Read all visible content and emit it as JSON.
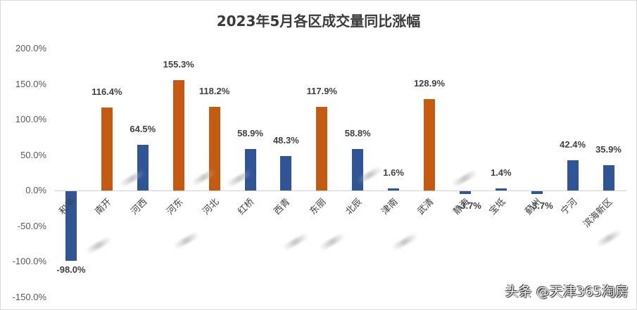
{
  "chart_data": {
    "type": "bar",
    "title": "2023年5月各区成交量同比涨幅",
    "xlabel": "",
    "ylabel": "",
    "ylim": [
      -150,
      200
    ],
    "yticks": [
      "200.0%",
      "150.0%",
      "100.0%",
      "50.0%",
      "0.0%",
      "-50.0%",
      "-100.0%",
      "-150.0%"
    ],
    "grid": false,
    "legend": null,
    "categories": [
      "和平",
      "南开",
      "河西",
      "河东",
      "河北",
      "红桥",
      "西青",
      "东丽",
      "北辰",
      "津南",
      "武清",
      "静海",
      "宝坻",
      "蓟州",
      "宁河",
      "滨海新区"
    ],
    "values": [
      -98.0,
      116.4,
      64.5,
      155.3,
      118.2,
      58.9,
      48.3,
      117.9,
      58.8,
      1.6,
      128.9,
      -3.7,
      1.4,
      -3.7,
      42.4,
      35.9
    ],
    "labels": [
      "-98.0%",
      "116.4%",
      "64.5%",
      "155.3%",
      "118.2%",
      "58.9%",
      "48.3%",
      "117.9%",
      "58.8%",
      "1.6%",
      "128.9%",
      "-3.7%",
      "1.4%",
      "-3.7%",
      "42.4%",
      "35.9%"
    ],
    "colors": [
      "#2f5597",
      "#c55a11",
      "#2f5597",
      "#c55a11",
      "#c55a11",
      "#2f5597",
      "#2f5597",
      "#c55a11",
      "#2f5597",
      "#2f5597",
      "#c55a11",
      "#2f5597",
      "#2f5597",
      "#2f5597",
      "#2f5597",
      "#2f5597"
    ]
  },
  "colors": {
    "highlight": "#c55a11",
    "normal": "#2f5597"
  },
  "watermark": "头条 @天津365淘房"
}
